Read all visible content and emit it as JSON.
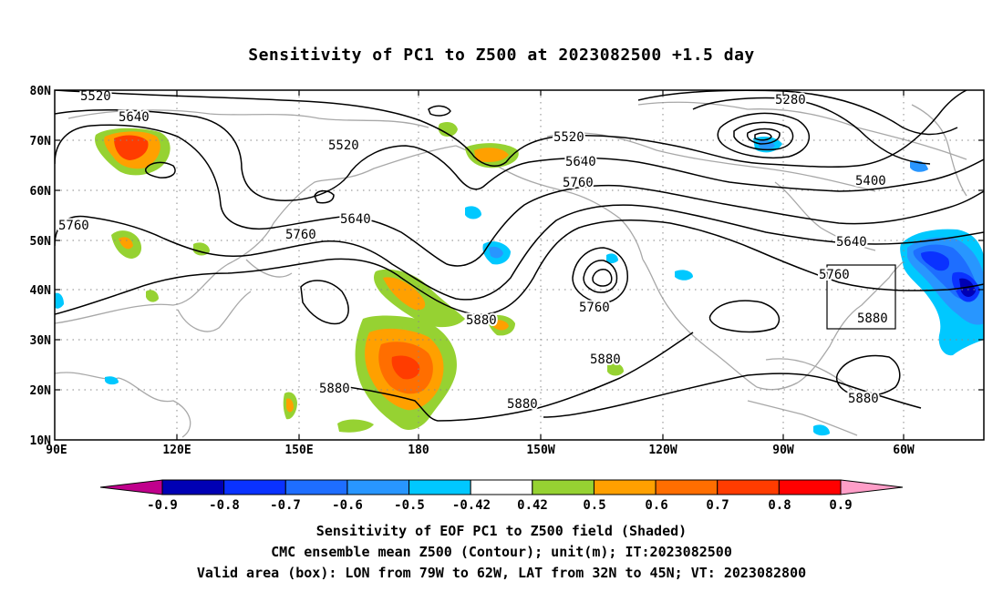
{
  "title": "Sensitivity of PC1 to Z500 at 2023082500 +1.5 day",
  "map": {
    "lon_labels": [
      "90E",
      "120E",
      "150E",
      "180",
      "150W",
      "120W",
      "90W",
      "60W"
    ],
    "lat_labels": [
      "80N",
      "70N",
      "60N",
      "50N",
      "40N",
      "30N",
      "20N",
      "10N"
    ],
    "contour_labels": [
      "5520",
      "5640",
      "5520",
      "5760",
      "5640",
      "5760",
      "5520",
      "5640",
      "5760",
      "5880",
      "5760",
      "5880",
      "5880",
      "5880",
      "5280",
      "5400",
      "5640",
      "5760",
      "5880",
      "5880"
    ],
    "valid_box": {
      "lon_from": "79W",
      "lon_to": "62W",
      "lat_from": "32N",
      "lat_to": "45N"
    }
  },
  "colorbar": {
    "labels": [
      "-0.9",
      "-0.8",
      "-0.7",
      "-0.6",
      "-0.5",
      "-0.42",
      "0.42",
      "0.5",
      "0.6",
      "0.7",
      "0.8",
      "0.9"
    ],
    "colors": [
      "#0000b4",
      "#0a32ff",
      "#1e6eff",
      "#2896ff",
      "#00c8ff",
      "#ffffff",
      "#96d232",
      "#ffa000",
      "#ff6e00",
      "#ff3c00",
      "#ff0000"
    ],
    "low_end_color": "#c0008c",
    "high_end_color": "#ff9ec8"
  },
  "footer": {
    "line1": "Sensitivity of EOF PC1 to Z500 field (Shaded)",
    "line2": "CMC ensemble mean Z500 (Contour); unit(m); IT:2023082500",
    "line3": "Valid area (box): LON from 79W to 62W, LAT from 32N to 45N; VT: 2023082800"
  }
}
